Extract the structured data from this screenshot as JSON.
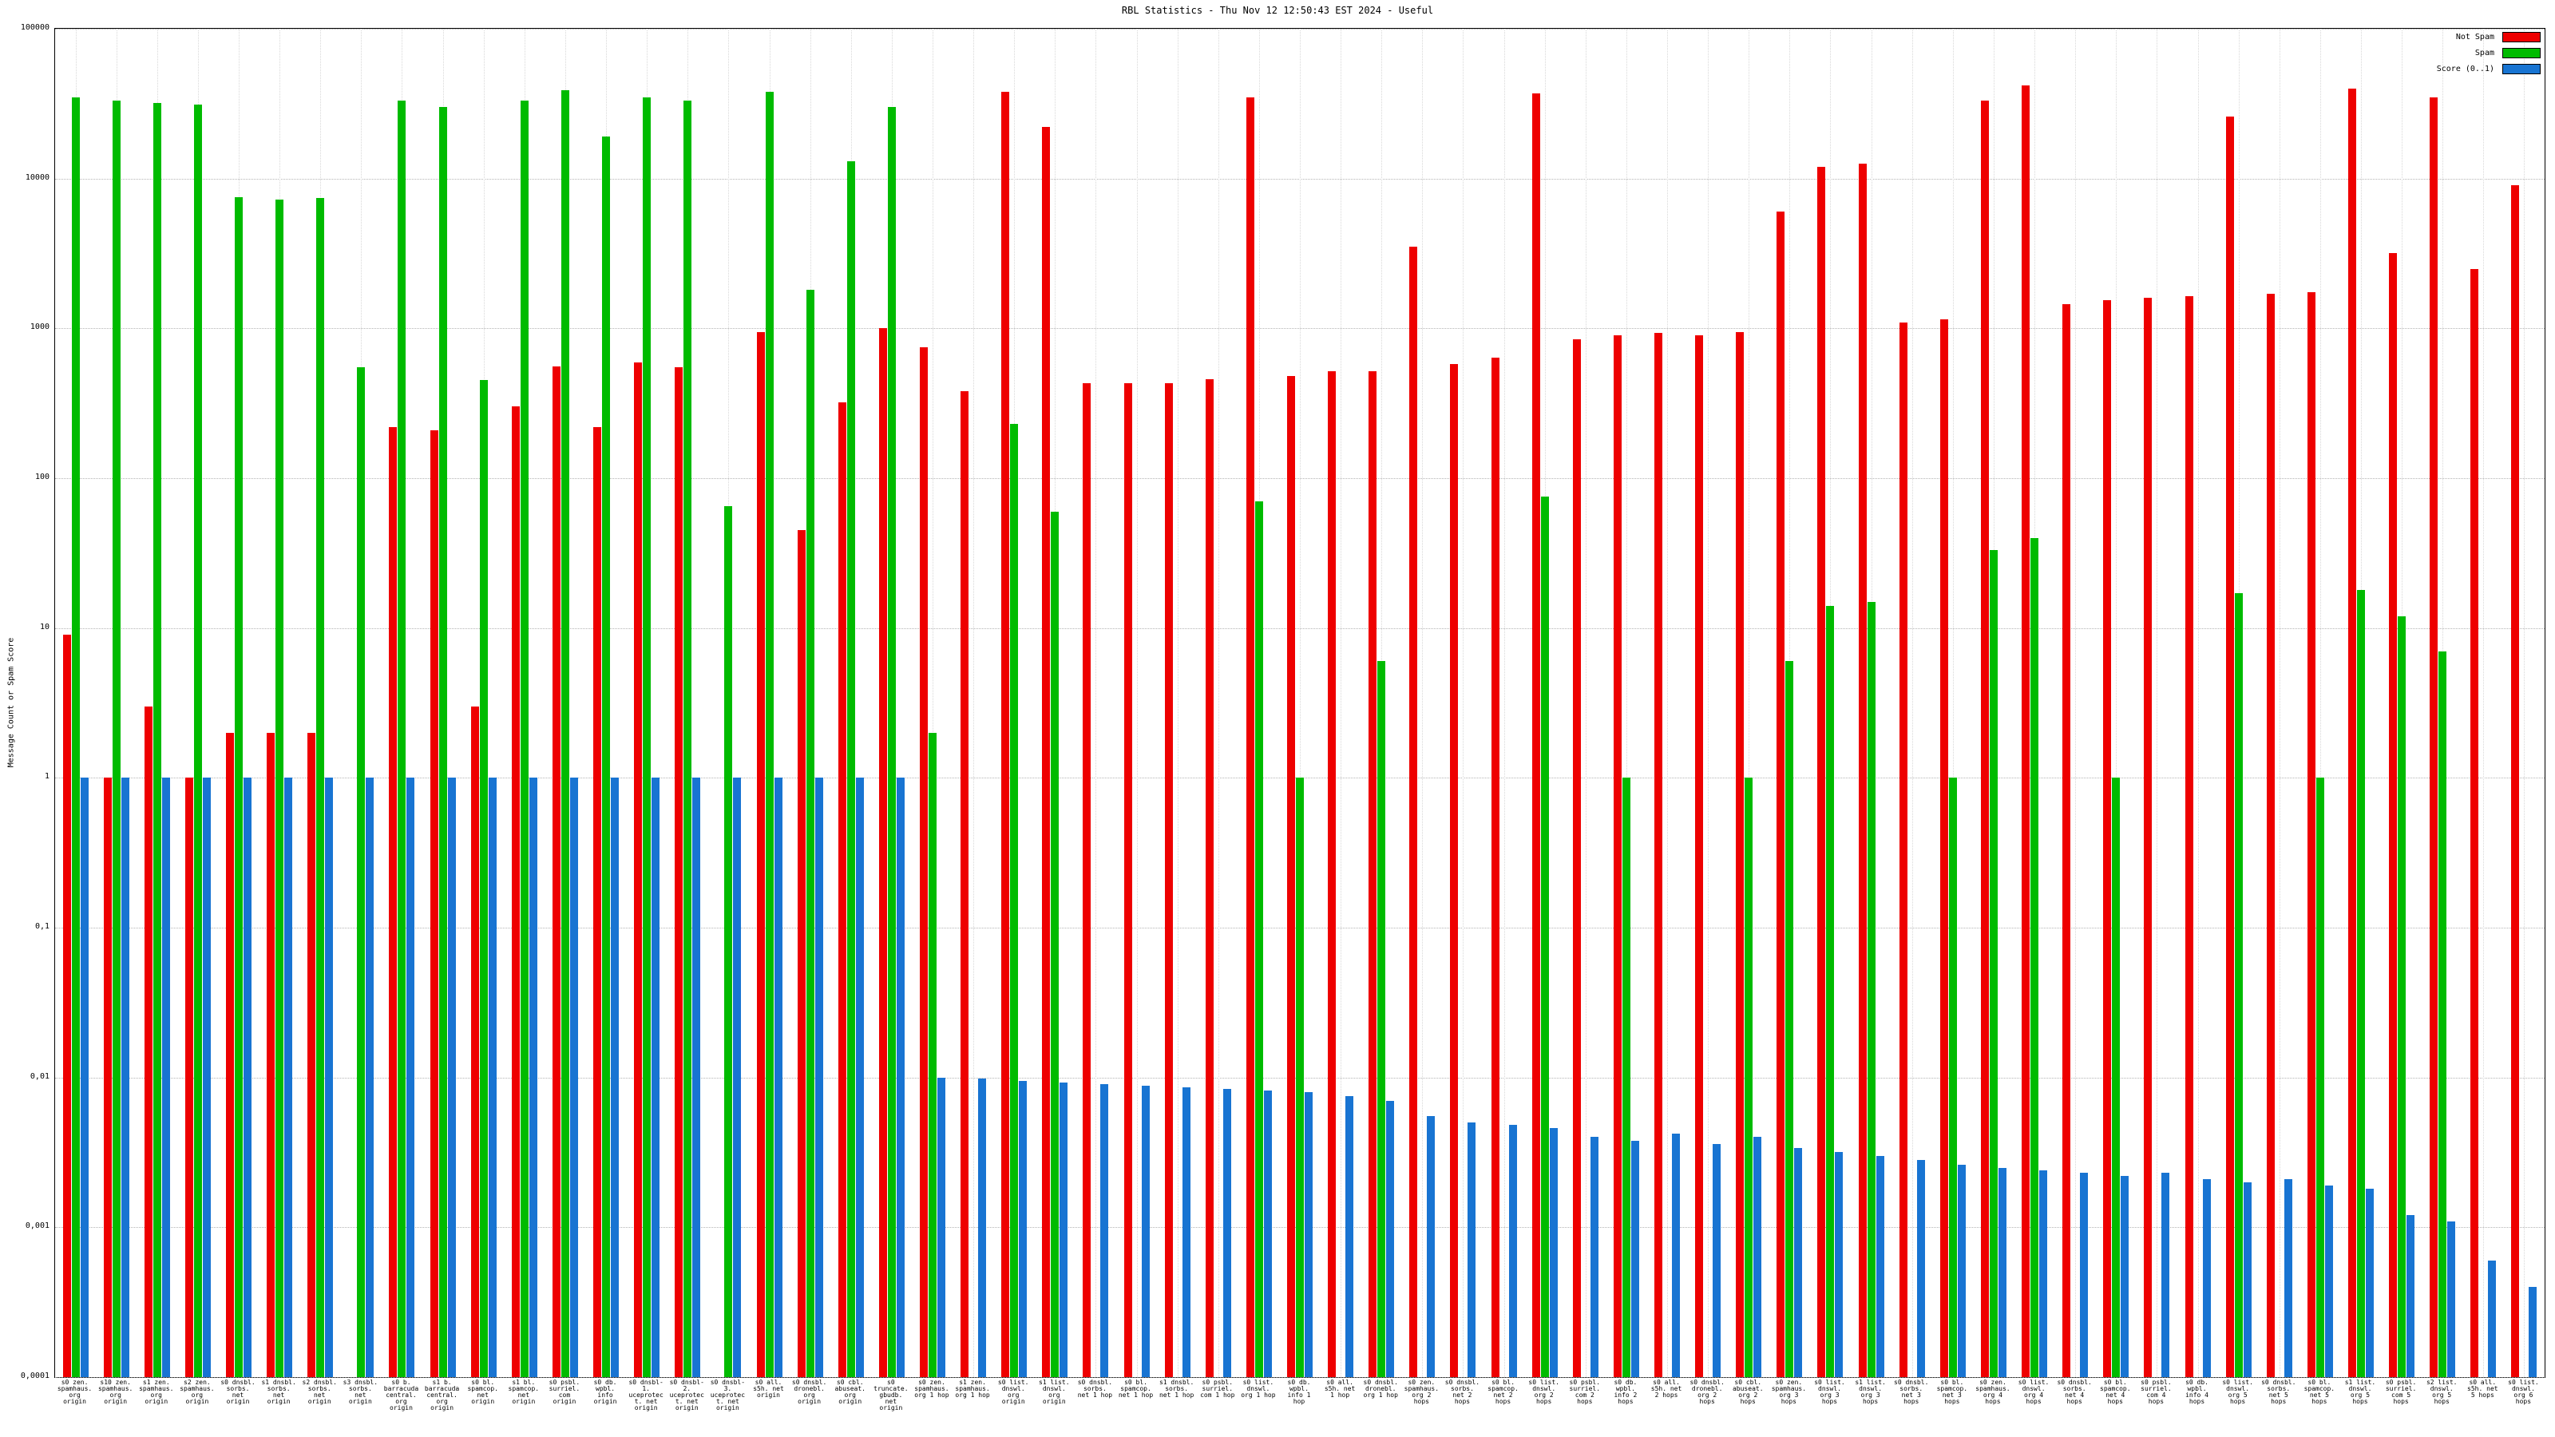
{
  "title": "RBL Statistics - Thu Nov 12 12:50:43 EST 2024 - Useful",
  "y_axis_label": "Message Count or Spam Score",
  "legend": {
    "not_spam": "Not Spam",
    "spam": "Spam",
    "score": "Score (0..1)"
  },
  "colors": {
    "not_spam": "#ee0000",
    "spam": "#00bb00",
    "score": "#1874d2",
    "grid": "#b4b4b4",
    "axis": "#000000"
  },
  "chart_data": {
    "type": "bar",
    "title": "RBL Statistics - Thu Nov 12 12:50:43 EST 2024 - Useful",
    "xlabel": "",
    "ylabel": "Message Count or Spam Score",
    "y_scale": "log10",
    "ylim": [
      0.0001,
      100000
    ],
    "y_ticks": [
      "100000",
      "10000",
      "1000",
      "100",
      "10",
      "1",
      "0,1",
      "0,01",
      "0,001",
      "0,0001"
    ],
    "grid": true,
    "legend_position": "top-right",
    "categories": [
      "s0 zen. spamhaus. org origin",
      "s10 zen. spamhaus. org origin",
      "s1 zen. spamhaus. org origin",
      "s2 zen. spamhaus. org origin",
      "s0 dnsbl. sorbs. net origin",
      "s1 dnsbl. sorbs. net origin",
      "s2 dnsbl. sorbs. net origin",
      "s3 dnsbl. sorbs. net origin",
      "s0 b. barracuda central. org origin",
      "s1 b. barracuda central. org origin",
      "s0 bl. spamcop. net origin",
      "s1 bl. spamcop. net origin",
      "s0 psbl. surriel. com origin",
      "s0 db. wpbl. info origin",
      "s0 dnsbl-1. uceprotect. net origin",
      "s0 dnsbl-2. uceprotect. net origin",
      "s0 dnsbl-3. uceprotect. net origin",
      "s0 all. s5h. net origin",
      "s0 dnsbl. dronebl. org origin",
      "s0 cbl. abuseat. org origin",
      "s0 truncate. gbudb. net origin",
      "s0 zen. spamhaus. org 1 hop",
      "s1 zen. spamhaus. org 1 hop",
      "s0 list. dnswl. org origin",
      "s1 list. dnswl. org origin",
      "s0 dnsbl. sorbs. net 1 hop",
      "s0 bl. spamcop. net 1 hop",
      "s1 dnsbl. sorbs. net 1 hop",
      "s0 psbl. surriel. com 1 hop",
      "s0 list. dnswl. org 1 hop",
      "s0 db. wpbl. info 1 hop",
      "s0 all. s5h. net 1 hop",
      "s0 dnsbl. dronebl. org 1 hop",
      "s0 zen. spamhaus. org 2 hops",
      "s0 dnsbl. sorbs. net 2 hops",
      "s0 bl. spamcop. net 2 hops",
      "s0 list. dnswl. org 2 hops",
      "s0 psbl. surriel. com 2 hops",
      "s0 db. wpbl. info 2 hops",
      "s0 all. s5h. net 2 hops",
      "s0 dnsbl. dronebl. org 2 hops",
      "s0 cbl. abuseat. org 2 hops",
      "s0 zen. spamhaus. org 3 hops",
      "s0 list. dnswl. org 3 hops",
      "s1 list. dnswl. org 3 hops",
      "s0 dnsbl. sorbs. net 3 hops",
      "s0 bl. spamcop. net 3 hops",
      "s0 zen. spamhaus. org 4 hops",
      "s0 list. dnswl. org 4 hops",
      "s0 dnsbl. sorbs. net 4 hops",
      "s0 bl. spamcop. net 4 hops",
      "s0 psbl. surriel. com 4 hops",
      "s0 db. wpbl. info 4 hops",
      "s0 list. dnswl. org 5 hops",
      "s0 dnsbl. sorbs. net 5 hops",
      "s0 bl. spamcop. net 5 hops",
      "s1 list. dnswl. org 5 hops",
      "s0 psbl. surriel. com 5 hops",
      "s2 list. dnswl. org 5 hops",
      "s0 all. s5h. net 5 hops",
      "s0 list. dnswl. org 6 hops"
    ],
    "series": [
      {
        "name": "Not Spam",
        "color": "#ee0000",
        "values": [
          9,
          1,
          3,
          1,
          2,
          2,
          2,
          0,
          220,
          210,
          3,
          300,
          560,
          220,
          590,
          550,
          0,
          950,
          45,
          320,
          1000,
          750,
          380,
          38000,
          22000,
          430,
          430,
          430,
          460,
          35000,
          480,
          520,
          520,
          3500,
          580,
          640,
          37000,
          850,
          900,
          930,
          900,
          950,
          6000,
          12000,
          12500,
          1100,
          1150,
          33000,
          42000,
          1450,
          1550,
          1600,
          1650,
          26000,
          1700,
          1750,
          40000,
          3200,
          35000,
          2500,
          9000
        ]
      },
      {
        "name": "Spam",
        "color": "#00bb00",
        "values": [
          35000,
          33000,
          32000,
          31000,
          7500,
          7200,
          7400,
          550,
          33000,
          30000,
          450,
          33000,
          39000,
          19000,
          35000,
          33000,
          65,
          38000,
          1800,
          13000,
          30000,
          2,
          0,
          230,
          60,
          0,
          0,
          0,
          0,
          70,
          1,
          0,
          6,
          0,
          0,
          0,
          75,
          0,
          1,
          0,
          0,
          1,
          6,
          14,
          15,
          0,
          1,
          33,
          40,
          0,
          1,
          0,
          0,
          17,
          0,
          1,
          18,
          12,
          7,
          0,
          0
        ]
      },
      {
        "name": "Score (0..1)",
        "color": "#1874d2",
        "values": [
          1,
          1,
          1,
          1,
          1,
          1,
          1,
          1,
          1,
          1,
          1,
          1,
          1,
          1,
          1,
          1,
          1,
          1,
          1,
          1,
          1,
          0.01,
          0.0098,
          0.0095,
          0.0092,
          0.009,
          0.0088,
          0.0086,
          0.0084,
          0.0082,
          0.008,
          0.0075,
          0.007,
          0.0055,
          0.005,
          0.0048,
          0.0046,
          0.004,
          0.0038,
          0.0042,
          0.0036,
          0.004,
          0.0034,
          0.0032,
          0.003,
          0.0028,
          0.0026,
          0.0025,
          0.0024,
          0.0023,
          0.0022,
          0.0023,
          0.0021,
          0.002,
          0.0021,
          0.0019,
          0.0018,
          0.0012,
          0.0011,
          0.0006,
          0.0004
        ]
      }
    ]
  }
}
